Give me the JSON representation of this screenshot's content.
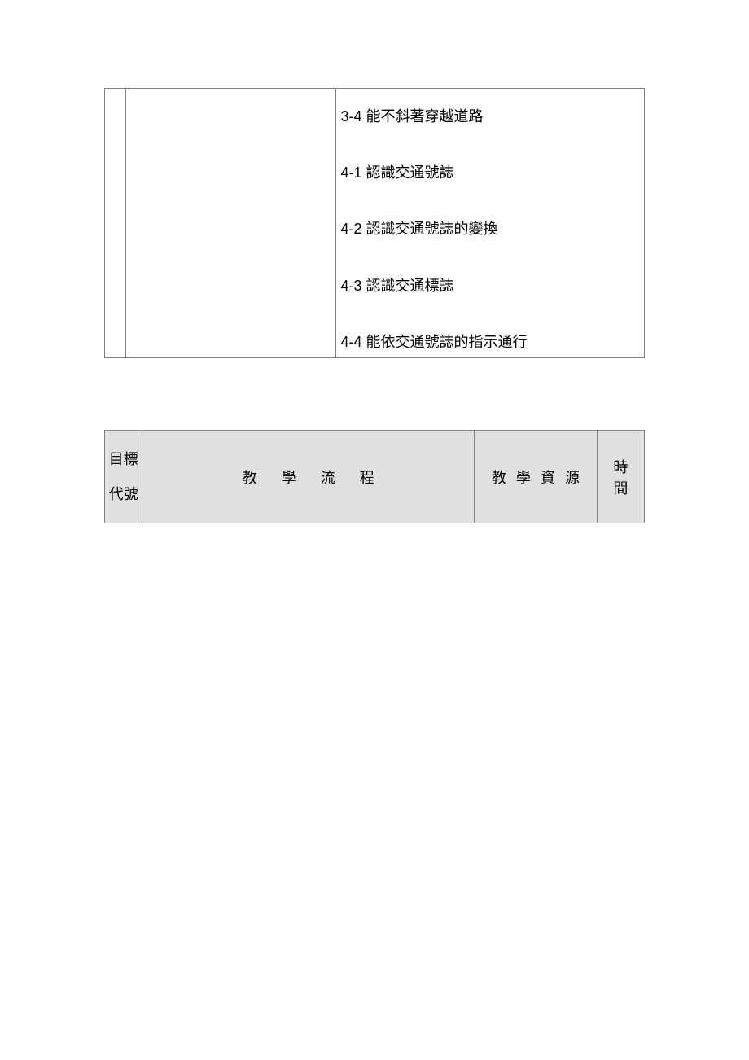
{
  "table1": {
    "items": [
      "3-4 能不斜著穿越道路",
      "4-1 認識交通號誌",
      "4-2 認識交通號誌的變換",
      "4-3 認識交通標誌",
      "4-4 能依交通號誌的指示通行"
    ]
  },
  "table2": {
    "headers": {
      "col1_line1": "目標",
      "col1_line2": "代號",
      "col2": "教學流程",
      "col3": "教學資源",
      "col4": "時間"
    }
  },
  "colors": {
    "background": "#ffffff",
    "border": "#808080",
    "header_bg": "#e0e0e0",
    "text": "#000000"
  }
}
